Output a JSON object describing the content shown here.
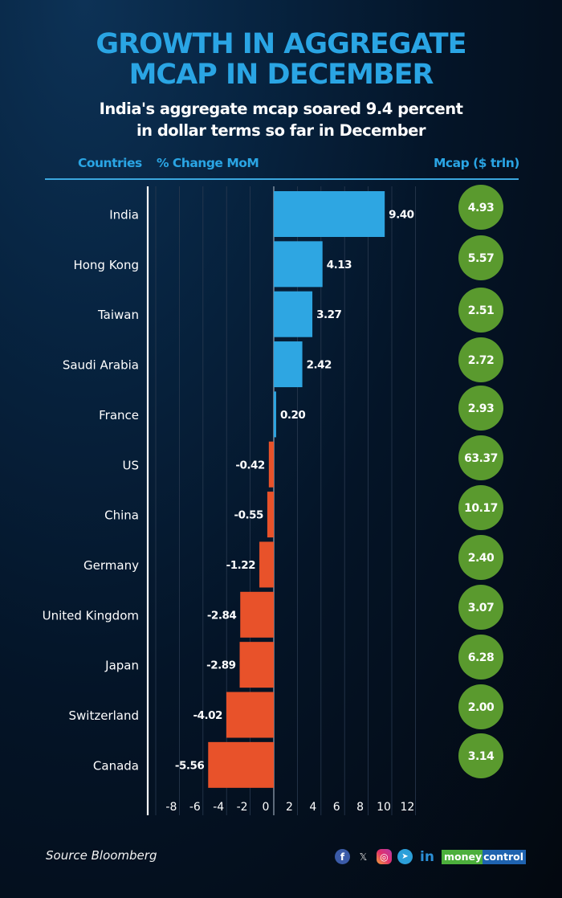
{
  "header": {
    "title_line1": "GROWTH IN AGGREGATE",
    "title_line2": "MCAP IN DECEMBER",
    "subtitle_line1": "India's aggregate mcap soared 9.4 percent",
    "subtitle_line2": "in dollar terms  so far in December",
    "col_countries": "Countries",
    "col_change": "% Change MoM",
    "col_mcap": "Mcap ($ trln)"
  },
  "colors": {
    "positive_bar": "#2ea6e2",
    "negative_bar": "#e8522a",
    "mcap_circle": "#5a9a2e",
    "title": "#2aa5e4"
  },
  "chart_data": {
    "type": "bar",
    "orientation": "horizontal",
    "title": "GROWTH IN AGGREGATE MCAP IN DECEMBER",
    "subtitle": "India's aggregate mcap soared 9.4 percent in dollar terms so far in December",
    "xlabel": "% Change MoM",
    "ylabel": "Countries",
    "categories": [
      "India",
      "Hong Kong",
      "Taiwan",
      "Saudi Arabia",
      "France",
      "US",
      "China",
      "Germany",
      "United Kingdom",
      "Japan",
      "Switzerland",
      "Canada"
    ],
    "series": [
      {
        "name": "% Change MoM",
        "values": [
          9.4,
          4.13,
          3.27,
          2.42,
          0.2,
          -0.42,
          -0.55,
          -1.22,
          -2.84,
          -2.89,
          -4.02,
          -5.56
        ]
      },
      {
        "name": "Mcap ($ trln)",
        "values": [
          4.93,
          5.57,
          2.51,
          2.72,
          2.93,
          63.37,
          10.17,
          2.4,
          3.07,
          6.28,
          2.0,
          3.14
        ]
      }
    ],
    "value_labels": [
      "9.40",
      "4.13",
      "3.27",
      "2.42",
      "0.20",
      "-0.42",
      "-0.55",
      "-1.22",
      "-2.84",
      "-2.89",
      "-4.02",
      "-5.56"
    ],
    "mcap_labels": [
      "4.93",
      "5.57",
      "2.51",
      "2.72",
      "2.93",
      "63.37",
      "10.17",
      "2.40",
      "3.07",
      "6.28",
      "2.00",
      "3.14"
    ],
    "x_ticks": [
      -8,
      -6,
      -4,
      -2,
      0,
      2,
      4,
      6,
      8,
      10,
      12
    ],
    "xlim": [
      -10,
      12
    ],
    "grid": true,
    "legend": "none"
  },
  "footer": {
    "source": "Source Bloomberg",
    "social_icons": [
      "facebook-icon",
      "x-icon",
      "instagram-icon",
      "telegram-icon",
      "linkedin-icon"
    ],
    "fb_glyph": "f",
    "x_glyph": "𝕏",
    "ig_glyph": "◎",
    "tg_glyph": "➤",
    "in_glyph": "in",
    "brand_part1": "money",
    "brand_part2": "control"
  }
}
